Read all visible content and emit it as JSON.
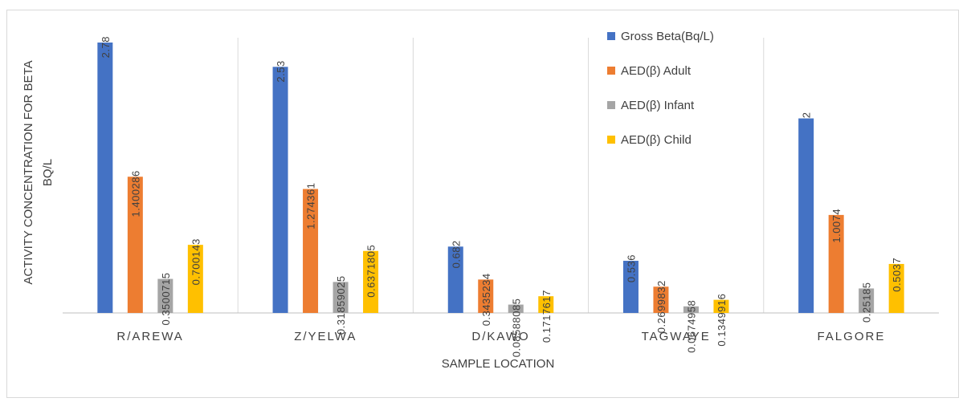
{
  "chart_data": {
    "type": "bar",
    "xlabel": "SAMPLE LOCATION",
    "ylabel_line1": "ACTIVITY CONCENTRATION FOR BETA",
    "ylabel_line2": "BQ/L",
    "categories": [
      "R/AREWA",
      "Z/YELWA",
      "D/KAWO",
      "TAGWAYE",
      "FALGORE"
    ],
    "series": [
      {
        "name": "Gross Beta(Bq/L)",
        "color": "#4472C4",
        "values": [
          2.78,
          2.53,
          0.682,
          0.536,
          2
        ],
        "labels": [
          "2.78",
          "2.53",
          "0.682",
          "0.536",
          "2"
        ]
      },
      {
        "name": "AED(β) Adult",
        "color": "#ED7D31",
        "values": [
          1.400286,
          1.274361,
          0.3435234,
          0.2699832,
          1.0074
        ],
        "labels": [
          "1.400286",
          "1.274361",
          "0.3435234",
          "0.2699832",
          "1.0074"
        ]
      },
      {
        "name": "AED(β) Infant",
        "color": "#A5A5A5",
        "values": [
          0.3500715,
          0.31859025,
          0.08588085,
          0.0674958,
          0.25185
        ],
        "labels": [
          "0.3500715",
          "0.31859025",
          "0.08588085",
          "0.0674958",
          "0.25185"
        ]
      },
      {
        "name": "AED(β) Child",
        "color": "#FFC000",
        "values": [
          0.700143,
          0.6371805,
          0.1717617,
          0.1349916,
          0.5037
        ],
        "labels": [
          "0.700143",
          "0.6371805",
          "0.1717617",
          "0.1349916",
          "0.5037"
        ]
      }
    ],
    "ylim": [
      0,
      2.8
    ],
    "legend_position": "top-right (inside plot)",
    "grid": "vertical category separators"
  }
}
